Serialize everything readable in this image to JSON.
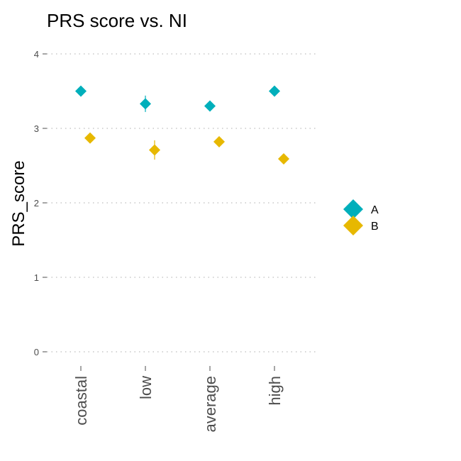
{
  "chart_data": {
    "type": "scatter",
    "title": "PRS score vs. NI",
    "xlabel": "",
    "ylabel": "PRS_score",
    "categories": [
      "coastal",
      "low",
      "average",
      "high"
    ],
    "ylim": [
      0,
      4
    ],
    "yticks": [
      0,
      1,
      2,
      3,
      4
    ],
    "grid": "horizontal dotted",
    "legend_position": "right",
    "series": [
      {
        "name": "A",
        "color": "#00AFBB",
        "marker": "diamond",
        "values": [
          3.5,
          3.33,
          3.3,
          3.5
        ],
        "error_low": [
          3.47,
          3.22,
          3.26,
          3.45
        ],
        "error_high": [
          3.53,
          3.44,
          3.34,
          3.55
        ]
      },
      {
        "name": "B",
        "color": "#E7B800",
        "marker": "diamond",
        "values": [
          2.87,
          2.71,
          2.82,
          2.59
        ],
        "error_low": [
          2.82,
          2.58,
          2.77,
          2.56
        ],
        "error_high": [
          2.92,
          2.84,
          2.87,
          2.62
        ]
      }
    ]
  }
}
